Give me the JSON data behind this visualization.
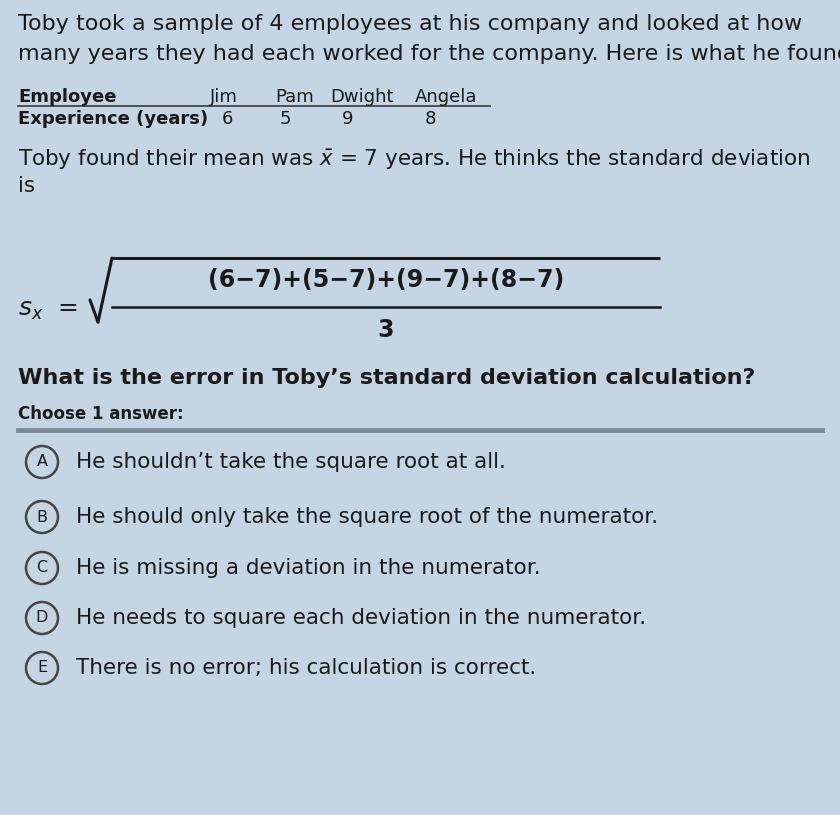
{
  "bg_color": "#c5d5e4",
  "font_color": "#1a1a1a",
  "separator_color": "#7a8a9a",
  "table_line_color": "#444444",
  "circle_color": "#444444",
  "title_line1": "Toby took a sample of 4 employees at his company and looked at how",
  "title_line2": "many years they had each worked for the company. Here is what he found:",
  "table_headers": [
    "Employee",
    "Jim",
    "Pam",
    "Dwight",
    "Angela"
  ],
  "table_row_label": "Experience (years)",
  "table_values": [
    "6",
    "5",
    "9",
    "8"
  ],
  "mean_line1": "Toby found their mean was $\\bar{x}$ = 7 years. He thinks the standard deviation",
  "mean_line2": "is",
  "question_text": "What is the error in Toby’s standard deviation calculation?",
  "choose_text": "Choose 1 answer:",
  "options": [
    {
      "label": "A",
      "text": "He shouldn’t take the square root at all."
    },
    {
      "label": "B",
      "text": "He should only take the square root of the numerator."
    },
    {
      "label": "C",
      "text": "He is missing a deviation in the numerator."
    },
    {
      "label": "D",
      "text": "He needs to square each deviation in the numerator."
    },
    {
      "label": "E",
      "text": "There is no error; his calculation is correct."
    }
  ],
  "numerator_text": "(6−7)+(5−7)+(9−7)+(8−7)",
  "denominator_text": "3",
  "sx_label": "$s_x$",
  "title_fontsize": 16,
  "body_fontsize": 15.5,
  "formula_fontsize": 17,
  "question_fontsize": 16,
  "option_fontsize": 15.5,
  "table_fontsize": 13
}
